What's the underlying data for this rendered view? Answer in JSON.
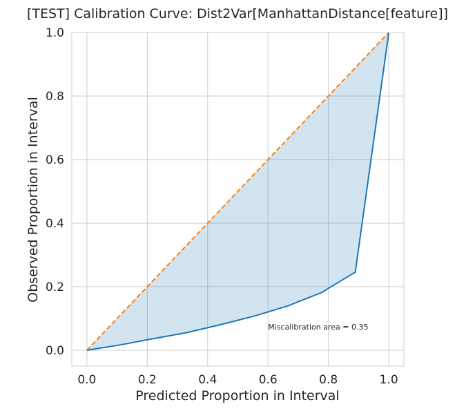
{
  "chart_data": {
    "type": "line",
    "title": "[TEST] Calibration Curve: Dist2Var[ManhattanDistance[feature]]",
    "xlabel": "Predicted Proportion in Interval",
    "ylabel": "Observed Proportion in Interval",
    "xlim": [
      -0.05,
      1.05
    ],
    "ylim": [
      -0.05,
      1.0
    ],
    "xticks": [
      0.0,
      0.2,
      0.4,
      0.6,
      0.8,
      1.0
    ],
    "yticks": [
      0.0,
      0.2,
      0.4,
      0.6,
      0.8,
      1.0
    ],
    "xtick_labels": [
      "0.0",
      "0.2",
      "0.4",
      "0.6",
      "0.8",
      "1.0"
    ],
    "ytick_labels": [
      "0.0",
      "0.2",
      "0.4",
      "0.6",
      "0.8",
      "1.0"
    ],
    "grid": true,
    "series": [
      {
        "kind": "calibration-curve",
        "color": "#1f77b4",
        "x": [
          0.0,
          0.111,
          0.222,
          0.333,
          0.444,
          0.556,
          0.667,
          0.778,
          0.889,
          1.0
        ],
        "y": [
          0.0,
          0.017,
          0.037,
          0.056,
          0.081,
          0.108,
          0.14,
          0.182,
          0.246,
          1.0
        ]
      },
      {
        "kind": "ideal-diagonal",
        "color": "#ff7f0e",
        "style": "dashed",
        "x": [
          0.0,
          1.0
        ],
        "y": [
          0.0,
          1.0
        ]
      }
    ],
    "fill": {
      "between": "calibration-curve and ideal-diagonal",
      "color": "#1f77b4",
      "opacity": 0.2
    },
    "annotation": {
      "text": "Miscalibration area = 0.35",
      "x": 0.6,
      "y": 0.065
    }
  }
}
